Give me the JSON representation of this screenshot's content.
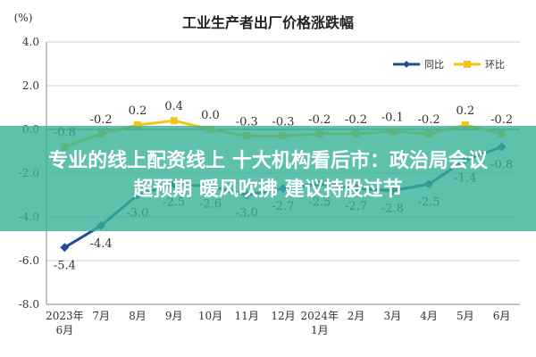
{
  "chart_data": {
    "type": "line",
    "title": "工业生产者出厂价格涨跌幅",
    "ylabel": "(%)",
    "xlabel": "",
    "ylim": [
      -8.0,
      4.0
    ],
    "yticks": [
      "4.0",
      "2.0",
      "0.0",
      "-2.0",
      "-4.0",
      "-6.0",
      "-8.0"
    ],
    "x_tick_lines": [
      [
        "2023年",
        "6月"
      ],
      [
        "7月"
      ],
      [
        "8月"
      ],
      [
        "9月"
      ],
      [
        "10月"
      ],
      [
        "11月"
      ],
      [
        "12月"
      ],
      [
        "2024年",
        "1月"
      ],
      [
        "2月"
      ],
      [
        "3月"
      ],
      [
        "4月"
      ],
      [
        "5月"
      ],
      [
        "6月"
      ]
    ],
    "legend_position": "top-right",
    "series": [
      {
        "name": "同比",
        "color": "#1f4e96",
        "values": [
          -5.4,
          -4.4,
          -3.0,
          -2.5,
          -2.6,
          -3.0,
          -2.7,
          -2.5,
          -2.7,
          -2.8,
          -2.5,
          -1.4,
          -0.8
        ],
        "labels": [
          "-5.4",
          "-4.4",
          "-3.0",
          "-2.5",
          "-2.6",
          "-3.0",
          "-2.7",
          "-2.5",
          "-2.7",
          "-2.8",
          "-2.5",
          "-1.4",
          "-0.8"
        ]
      },
      {
        "name": "环比",
        "color": "#f2c31b",
        "values": [
          -0.8,
          -0.2,
          0.2,
          0.4,
          0.0,
          -0.3,
          -0.3,
          -0.2,
          -0.2,
          -0.1,
          -0.2,
          0.2,
          -0.2
        ],
        "labels": [
          "-0.8",
          "-0.2",
          "0.2",
          "0.4",
          "0.0",
          "-0.3",
          "-0.3",
          "-0.2",
          "-0.2",
          "-0.1",
          "-0.2",
          "0.2",
          "-0.2"
        ]
      }
    ]
  },
  "banner": {
    "line1": "专业的线上配资线上 十大机构看后市：政治局会议",
    "line2": "超预期 暖风吹拂 建议持股过节",
    "color": "#34b296"
  }
}
